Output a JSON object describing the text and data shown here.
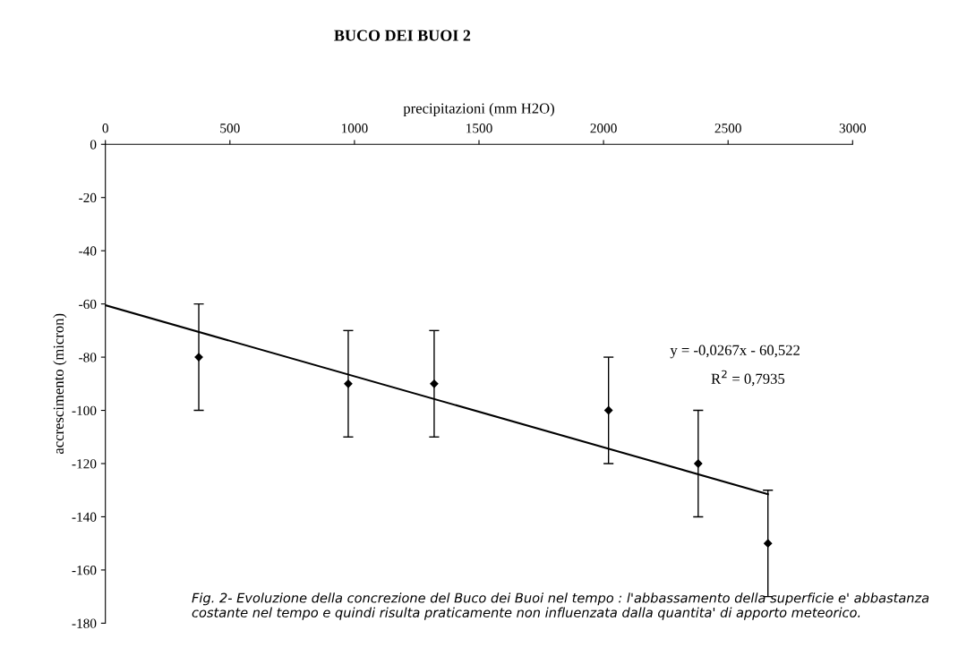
{
  "chart_data": {
    "type": "scatter",
    "title": "BUCO DEI BUOI 2",
    "xlabel": "precipitazioni (mm H2O)",
    "ylabel": "accrescimento (micron)",
    "xlim": [
      0,
      3000
    ],
    "xticks": [
      0,
      500,
      1000,
      1500,
      2000,
      2500,
      3000
    ],
    "ylim": [
      -180,
      0
    ],
    "yticks": [
      -180,
      -160,
      -140,
      -120,
      -100,
      -80,
      -60,
      -40,
      -20,
      0
    ],
    "series": [
      {
        "color": "#000000",
        "marker": "diamond",
        "x": [
          375,
          975,
          1320,
          2020,
          2380,
          2660
        ],
        "values": [
          -80,
          -90,
          -90,
          -100,
          -120,
          -150
        ],
        "errors": [
          20,
          20,
          20,
          20,
          20,
          20
        ]
      },
      {
        "type": "line",
        "color": "#000000",
        "marker": "none",
        "line_style": "solid",
        "x": [
          0,
          2660
        ],
        "values": [
          -60.5,
          -131.5
        ]
      }
    ],
    "annotations": [
      "y = -0,0267x - 60,522",
      "R$^{2}$ = 0,7935",
      "Fig. 2- Evoluzione della concrezione del Buco dei Buoi nel tempo : l'abbassamento della superficie e' abbastanza costante nel tempo e quindi risulta praticamente non influenzata dalla quantita' di apporto meteorico."
    ],
    "grid": false,
    "legend": false
  }
}
